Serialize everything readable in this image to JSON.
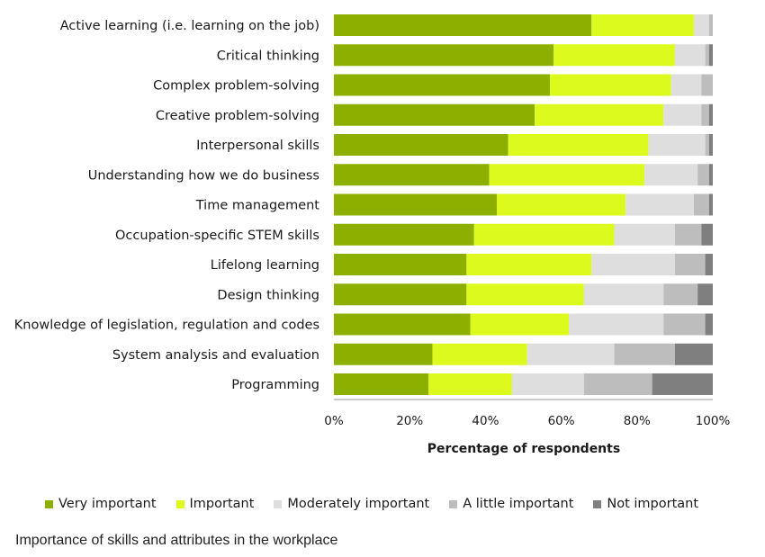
{
  "chart_data": {
    "type": "bar",
    "orientation": "horizontal",
    "stacked": true,
    "categories": [
      "Active learning (i.e. learning on the job)",
      "Critical thinking",
      "Complex problem-solving",
      "Creative problem-solving",
      "Interpersonal skills",
      "Understanding how we do business",
      "Time management",
      "Occupation-specific STEM skills",
      "Lifelong learning",
      "Design thinking",
      "Knowledge of legislation, regulation and codes",
      "System analysis and evaluation",
      "Programming"
    ],
    "series": [
      {
        "name": "Very important",
        "color": "#8db000",
        "values": [
          68,
          58,
          57,
          53,
          46,
          41,
          43,
          37,
          35,
          35,
          36,
          26,
          25
        ]
      },
      {
        "name": "Important",
        "color": "#ddfa1e",
        "values": [
          27,
          32,
          32,
          34,
          37,
          41,
          34,
          37,
          33,
          31,
          26,
          25,
          22
        ]
      },
      {
        "name": "Moderately important",
        "color": "#dedede",
        "values": [
          4,
          8,
          8,
          10,
          15,
          14,
          18,
          16,
          22,
          21,
          25,
          23,
          19
        ]
      },
      {
        "name": "A little important",
        "color": "#bdbdbd",
        "values": [
          1,
          1,
          3,
          2,
          1,
          3,
          4,
          7,
          8,
          9,
          11,
          16,
          18
        ]
      },
      {
        "name": "Not important",
        "color": "#7f7f7f",
        "values": [
          0,
          1,
          0,
          1,
          1,
          1,
          1,
          3,
          2,
          4,
          2,
          10,
          16
        ]
      }
    ],
    "xlim": [
      0,
      100
    ],
    "xticks": [
      "0%",
      "20%",
      "40%",
      "60%",
      "80%",
      "100%"
    ],
    "xlabel": "Percentage of respondents",
    "ylabel": "",
    "title": "",
    "grid": false,
    "legend_position": "bottom"
  },
  "caption": "Importance of skills and attributes in the workplace"
}
